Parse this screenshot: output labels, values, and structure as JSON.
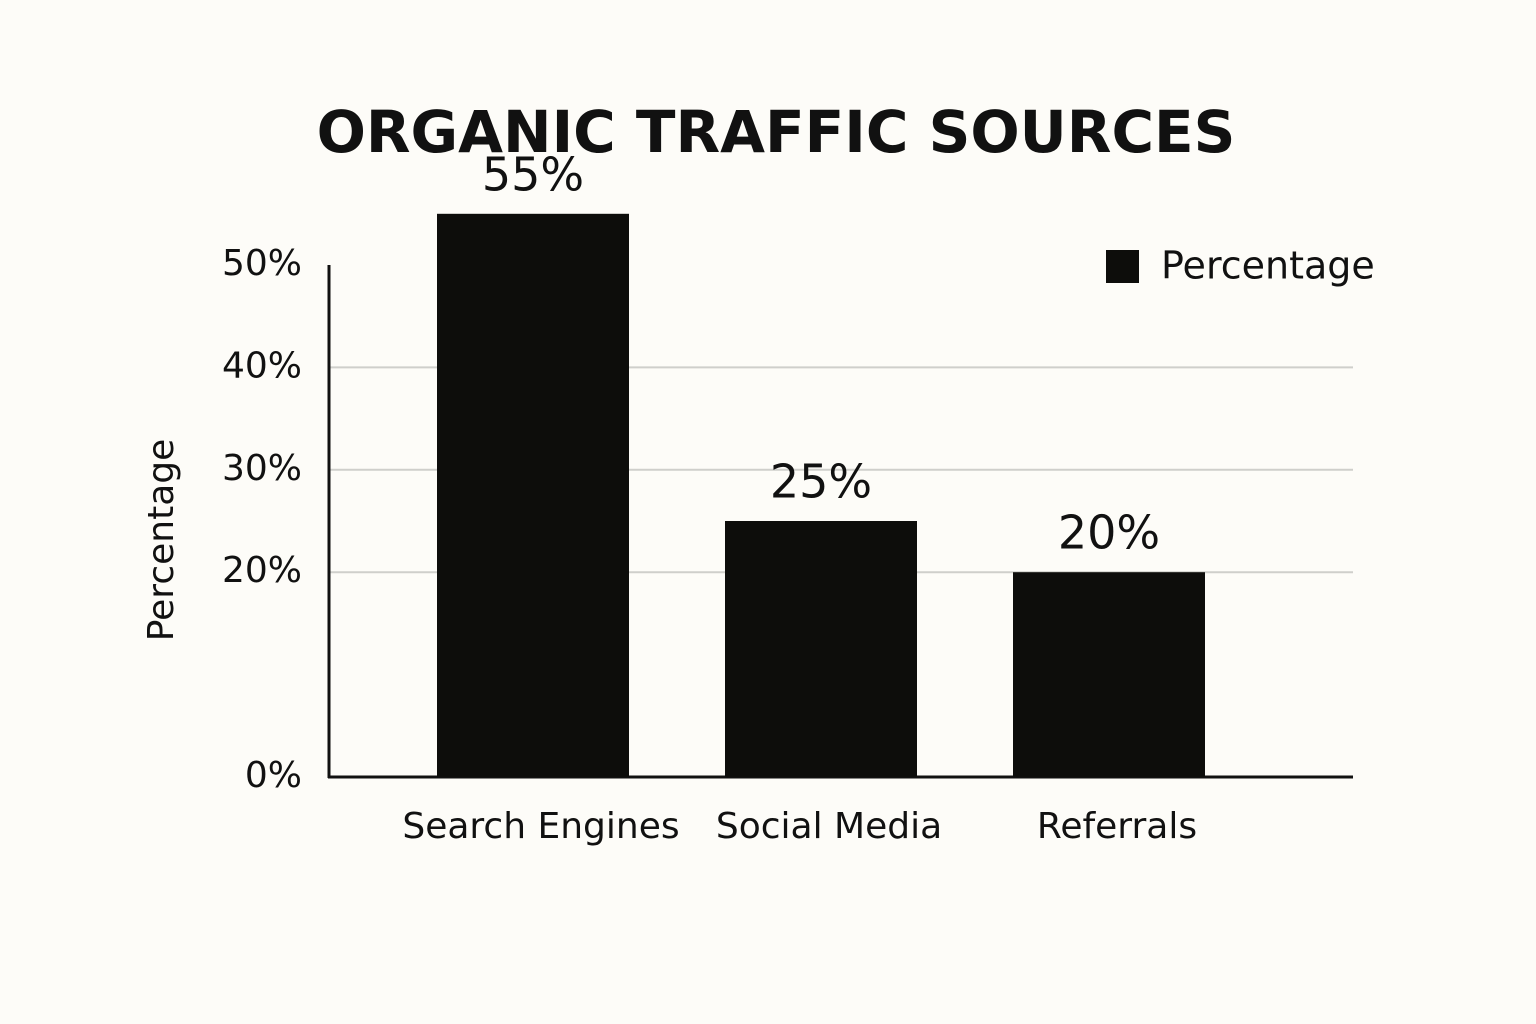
{
  "chart_data": {
    "type": "bar",
    "title": "ORGANIC TRAFFIC SOURCES",
    "y_label": "Percentage",
    "categories": [
      "Search Engines",
      "Social Media",
      "Referrals"
    ],
    "series": [
      {
        "name": "Percentage",
        "color": "#0d0d0b",
        "values": [
          55,
          25,
          20
        ],
        "value_labels": [
          "55%",
          "25%",
          "20%"
        ]
      }
    ],
    "ylim": [
      0,
      50
    ],
    "yticks": [
      {
        "value": 0,
        "label": "0%"
      },
      {
        "value": 20,
        "label": "20%"
      },
      {
        "value": 30,
        "label": "30%"
      },
      {
        "value": 40,
        "label": "40%"
      },
      {
        "value": 50,
        "label": "50%"
      }
    ],
    "grid": true,
    "legend": "top-right"
  }
}
